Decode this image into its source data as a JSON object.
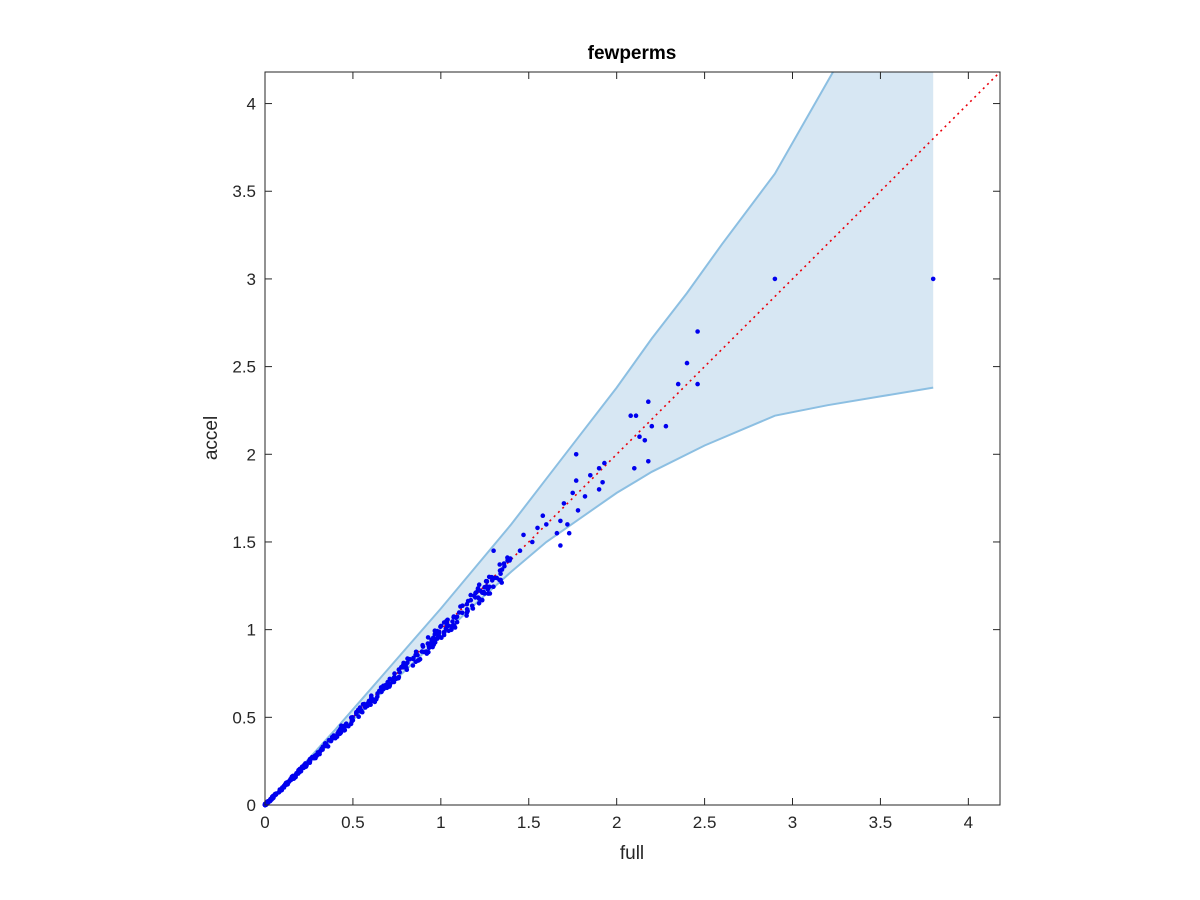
{
  "chart_data": {
    "type": "scatter",
    "title": "fewperms",
    "xlabel": "full",
    "ylabel": "accel",
    "xlim": [
      0,
      4.18
    ],
    "ylim": [
      0,
      4.18
    ],
    "xticks": [
      0,
      0.5,
      1,
      1.5,
      2,
      2.5,
      3,
      3.5,
      4
    ],
    "xtick_labels": [
      "0",
      "0.5",
      "1",
      "1.5",
      "2",
      "2.5",
      "3",
      "3.5",
      "4"
    ],
    "yticks": [
      0,
      0.5,
      1,
      1.5,
      2,
      2.5,
      3,
      3.5,
      4
    ],
    "ytick_labels": [
      "0",
      "0.5",
      "1",
      "1.5",
      "2",
      "2.5",
      "3",
      "3.5",
      "4"
    ],
    "grid": false,
    "colors": {
      "points": "#0000ee",
      "band_fill": "#d7e7f3",
      "band_edge": "#8cbfe2",
      "reference_line": "#e8000b",
      "axes": "#262626"
    },
    "reference_line": {
      "style": "dotted",
      "from": [
        0,
        0
      ],
      "to": [
        4.18,
        4.18
      ]
    },
    "band": {
      "upper": [
        [
          0,
          0
        ],
        [
          0.2,
          0.21
        ],
        [
          0.4,
          0.43
        ],
        [
          0.6,
          0.66
        ],
        [
          0.8,
          0.89
        ],
        [
          1.0,
          1.12
        ],
        [
          1.2,
          1.36
        ],
        [
          1.4,
          1.6
        ],
        [
          1.6,
          1.86
        ],
        [
          1.8,
          2.12
        ],
        [
          2.0,
          2.38
        ],
        [
          2.2,
          2.66
        ],
        [
          2.4,
          2.92
        ],
        [
          2.6,
          3.2
        ],
        [
          2.9,
          3.6
        ],
        [
          3.23,
          4.18
        ],
        [
          3.8,
          4.18
        ]
      ],
      "lower": [
        [
          3.8,
          2.38
        ],
        [
          3.5,
          2.33
        ],
        [
          3.2,
          2.28
        ],
        [
          2.9,
          2.22
        ],
        [
          2.5,
          2.05
        ],
        [
          2.2,
          1.9
        ],
        [
          2.0,
          1.78
        ],
        [
          1.8,
          1.64
        ],
        [
          1.6,
          1.5
        ],
        [
          1.4,
          1.33
        ],
        [
          1.2,
          1.15
        ],
        [
          1.0,
          0.96
        ],
        [
          0.8,
          0.77
        ],
        [
          0.6,
          0.58
        ],
        [
          0.4,
          0.39
        ],
        [
          0.2,
          0.19
        ],
        [
          0,
          0
        ]
      ]
    },
    "outliers": [
      [
        1.77,
        2.0
      ],
      [
        1.3,
        1.45
      ],
      [
        2.46,
        2.7
      ],
      [
        2.4,
        2.52
      ],
      [
        2.35,
        2.4
      ],
      [
        2.46,
        2.4
      ],
      [
        2.18,
        2.3
      ],
      [
        2.08,
        2.22
      ],
      [
        2.11,
        2.22
      ],
      [
        2.13,
        2.1
      ],
      [
        2.2,
        2.16
      ],
      [
        2.28,
        2.16
      ],
      [
        2.16,
        2.08
      ],
      [
        2.18,
        1.96
      ],
      [
        2.1,
        1.92
      ],
      [
        1.9,
        1.92
      ],
      [
        1.93,
        1.95
      ],
      [
        1.77,
        1.85
      ],
      [
        1.85,
        1.88
      ],
      [
        1.75,
        1.78
      ],
      [
        1.82,
        1.76
      ],
      [
        1.9,
        1.8
      ],
      [
        1.92,
        1.84
      ],
      [
        1.7,
        1.72
      ],
      [
        1.78,
        1.68
      ],
      [
        1.68,
        1.62
      ],
      [
        1.73,
        1.55
      ],
      [
        1.72,
        1.6
      ],
      [
        1.66,
        1.55
      ],
      [
        1.68,
        1.48
      ],
      [
        1.6,
        1.6
      ],
      [
        1.58,
        1.65
      ],
      [
        1.55,
        1.58
      ],
      [
        1.52,
        1.5
      ],
      [
        1.47,
        1.54
      ],
      [
        1.45,
        1.45
      ],
      [
        2.9,
        3.0
      ],
      [
        3.8,
        3.0
      ]
    ],
    "cluster": {
      "count": 420,
      "x_max": 1.4,
      "x_spread": 0.012,
      "y_ratio_range": [
        -0.06,
        0.03
      ]
    }
  }
}
